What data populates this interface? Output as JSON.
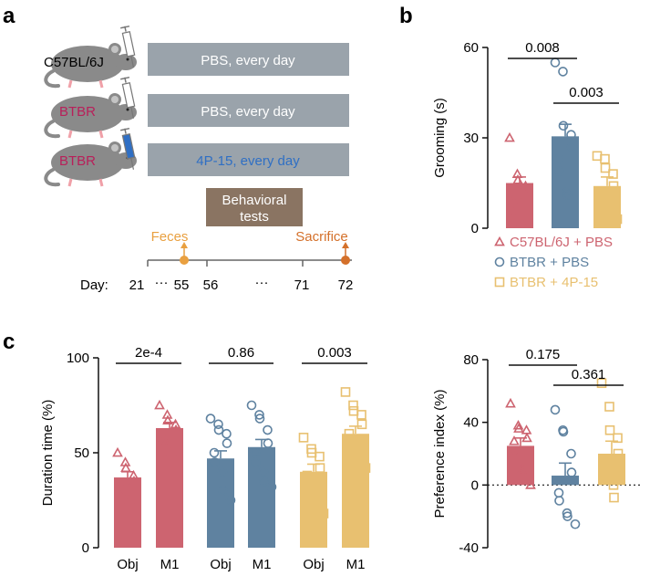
{
  "colors": {
    "red": "#cd6470",
    "blue": "#5f82a0",
    "yellow": "#e8c070",
    "gray_bar": "#9aa3ab",
    "brown_box": "#8a7462",
    "feces": "#e9a040",
    "sacrifice": "#d4702a",
    "btbr_text": "#b8205a",
    "drug_text": "#2f6fc4",
    "mouse": "#8a8a8a"
  },
  "panel_a": {
    "label": "a",
    "rows": [
      {
        "strain": "C57BL/6J",
        "treatment": "PBS, every day",
        "syringe": "plain"
      },
      {
        "strain": "BTBR",
        "treatment": "PBS, every day",
        "syringe": "plain"
      },
      {
        "strain": "BTBR",
        "treatment": "4P-15, every day",
        "syringe": "drug"
      }
    ],
    "behavior_box": [
      "Behavioral",
      "tests"
    ],
    "feces_label": "Feces",
    "sacrifice_label": "Sacrifice",
    "day_label": "Day:",
    "day_ticks": [
      "21",
      "55",
      "56",
      "71",
      "72"
    ],
    "ellipsis": "···",
    "ellipsis2": "···"
  },
  "chart_data": [
    {
      "panel": "b",
      "type": "bar",
      "ylabel": "Grooming (s)",
      "ylim": [
        0,
        60
      ],
      "yticks": [
        "0",
        "30",
        "60"
      ],
      "groups": [
        "C57BL/6J + PBS",
        "BTBR + PBS",
        "BTBR + 4P-15"
      ],
      "means": [
        15,
        30.5,
        14
      ],
      "sem": [
        2,
        4,
        3
      ],
      "points": [
        [
          30,
          18,
          16,
          14,
          11,
          9,
          5,
          2
        ],
        [
          55,
          52,
          34,
          31,
          27,
          23,
          19,
          12,
          11
        ],
        [
          24,
          23,
          20,
          18,
          14,
          12,
          10,
          8,
          4,
          3
        ]
      ],
      "markers": [
        "triangle",
        "circle",
        "square"
      ],
      "brackets": [
        {
          "from": 0,
          "to": 1,
          "text": "0.008"
        },
        {
          "from": 1,
          "to": 2,
          "text": "0.003"
        }
      ],
      "legend": [
        "C57BL/6J + PBS",
        "BTBR + PBS",
        "BTBR + 4P-15"
      ]
    },
    {
      "panel": "c",
      "type": "bar",
      "ylabel": "Duration time (%)",
      "ylim": [
        0,
        100
      ],
      "yticks": [
        "0",
        "50",
        "100"
      ],
      "categories": [
        "Obj",
        "M1",
        "Obj",
        "M1",
        "Obj",
        "M1"
      ],
      "means": [
        37,
        63,
        47,
        53,
        40,
        60
      ],
      "sem": [
        3,
        3,
        4,
        4,
        4,
        4
      ],
      "points": [
        [
          50,
          45,
          42,
          38,
          35,
          32,
          28,
          25
        ],
        [
          75,
          70,
          67,
          65,
          62,
          58,
          55,
          50
        ],
        [
          68,
          65,
          62,
          60,
          55,
          50,
          45,
          40,
          30,
          25
        ],
        [
          75,
          70,
          68,
          62,
          55,
          50,
          45,
          40,
          35,
          32
        ],
        [
          58,
          52,
          50,
          48,
          42,
          38,
          35,
          30,
          25,
          18
        ],
        [
          82,
          75,
          72,
          70,
          65,
          60,
          55,
          50,
          48,
          42
        ]
      ],
      "markers": [
        "triangle",
        "triangle",
        "circle",
        "circle",
        "square",
        "square"
      ],
      "brackets": [
        {
          "from": 0,
          "to": 1,
          "text": "2e-4"
        },
        {
          "from": 2,
          "to": 3,
          "text": "0.86"
        },
        {
          "from": 4,
          "to": 5,
          "text": "0.003"
        }
      ]
    },
    {
      "panel": "c-right",
      "type": "bar",
      "ylabel": "Preference index (%)",
      "ylim": [
        -40,
        80
      ],
      "yticks": [
        "-40",
        "0",
        "40",
        "80"
      ],
      "groups": [
        "C57BL/6J + PBS",
        "BTBR + PBS",
        "BTBR + 4P-15"
      ],
      "means": [
        25,
        6,
        20
      ],
      "sem": [
        5,
        8,
        8
      ],
      "points": [
        [
          52,
          38,
          36,
          35,
          30,
          28,
          20,
          10,
          8,
          0
        ],
        [
          48,
          35,
          34,
          20,
          8,
          -5,
          -10,
          -18,
          -20,
          -25
        ],
        [
          65,
          50,
          35,
          30,
          20,
          14,
          8,
          0,
          -8
        ]
      ],
      "markers": [
        "triangle",
        "circle",
        "square"
      ],
      "brackets": [
        {
          "from": 0,
          "to": 1,
          "text": "0.175"
        },
        {
          "from": 1,
          "to": 2,
          "text": "0.361"
        }
      ]
    }
  ],
  "panel_labels": {
    "b": "b",
    "c": "c"
  }
}
